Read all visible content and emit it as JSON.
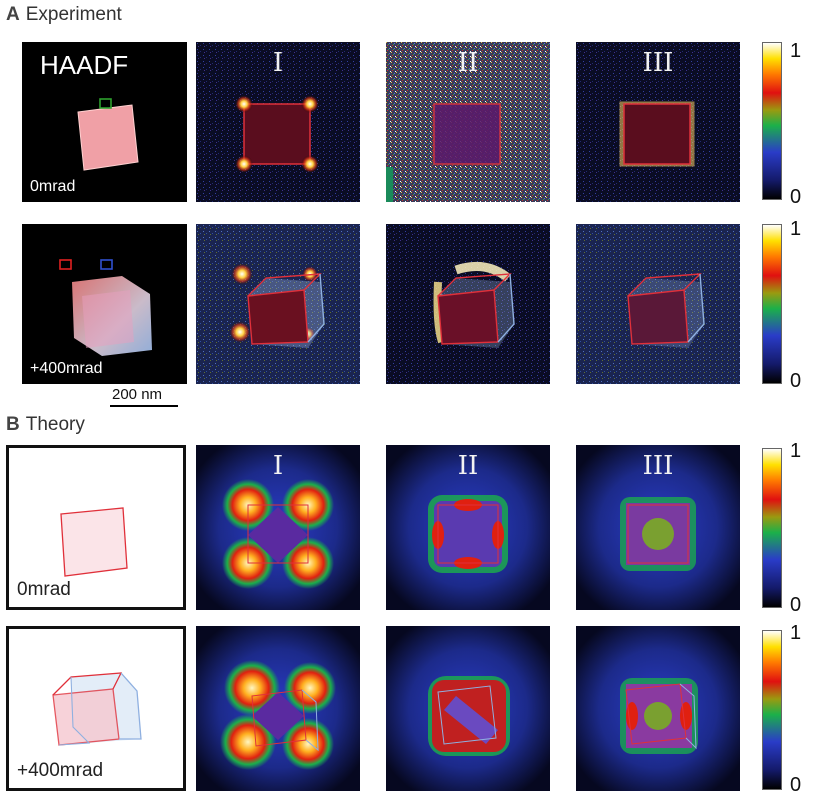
{
  "sections": {
    "experiment": {
      "letter": "A",
      "title": "Experiment"
    },
    "theory": {
      "letter": "B",
      "title": "Theory"
    }
  },
  "panel_labels": {
    "haadf": "HAADF",
    "tilt_0": "0mrad",
    "tilt_400": "+400mrad",
    "modes": [
      "I",
      "II",
      "III"
    ]
  },
  "colorbar": {
    "max_label": "1",
    "min_label": "0"
  },
  "scalebar": {
    "label": "200 nm"
  },
  "colors": {
    "overlay_red": "#e0303a",
    "overlay_blue": "#8fb0e0",
    "haadf_particle": "#f2a0a6",
    "marker_green": "#2ea02e",
    "marker_red": "#e02020",
    "marker_blue": "#3050d0"
  }
}
